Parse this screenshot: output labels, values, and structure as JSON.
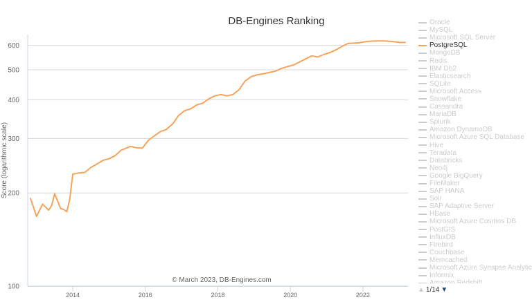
{
  "chart_data": {
    "type": "line",
    "title": "DB-Engines Ranking",
    "ylabel": "Score (logarithmic scale)",
    "y_scale": "log",
    "ylim": [
      100,
      650
    ],
    "y_ticks": [
      100,
      200,
      300,
      400,
      500,
      600
    ],
    "x_ticks": [
      "2014",
      "2016",
      "2018",
      "2020",
      "2022"
    ],
    "xlim": [
      "2012-11",
      "2023-03"
    ],
    "credits": "© March 2023, DB-Engines.com",
    "series_color": "#f7a35c",
    "series": [
      {
        "name": "PostgreSQL",
        "x": [
          "2012-11",
          "2013-01",
          "2013-03",
          "2013-05",
          "2013-06",
          "2013-07",
          "2013-09",
          "2013-10",
          "2013-11",
          "2013-12",
          "2014-01",
          "2014-03",
          "2014-05",
          "2014-07",
          "2014-09",
          "2014-11",
          "2015-01",
          "2015-03",
          "2015-05",
          "2015-07",
          "2015-08",
          "2015-10",
          "2015-12",
          "2016-02",
          "2016-04",
          "2016-06",
          "2016-08",
          "2016-10",
          "2016-12",
          "2017-02",
          "2017-04",
          "2017-06",
          "2017-08",
          "2017-10",
          "2017-12",
          "2018-02",
          "2018-04",
          "2018-06",
          "2018-08",
          "2018-10",
          "2018-12",
          "2019-02",
          "2019-04",
          "2019-06",
          "2019-08",
          "2019-10",
          "2019-12",
          "2020-02",
          "2020-04",
          "2020-06",
          "2020-08",
          "2020-10",
          "2020-12",
          "2021-02",
          "2021-04",
          "2021-06",
          "2021-08",
          "2021-10",
          "2021-12",
          "2022-02",
          "2022-04",
          "2022-06",
          "2022-08",
          "2022-10",
          "2022-12",
          "2023-01",
          "2023-03"
        ],
        "values": [
          192,
          168,
          184,
          176,
          182,
          199,
          178,
          177,
          174,
          191,
          230,
          232,
          233,
          242,
          248,
          255,
          258,
          264,
          275,
          280,
          283,
          280,
          279,
          296,
          306,
          316,
          321,
          334,
          356,
          369,
          374,
          385,
          390,
          403,
          412,
          416,
          412,
          416,
          431,
          460,
          475,
          482,
          485,
          490,
          495,
          505,
          512,
          518,
          530,
          542,
          555,
          550,
          560,
          568,
          580,
          595,
          608,
          610,
          612,
          617,
          619,
          620,
          620,
          618,
          615,
          613,
          613
        ]
      }
    ],
    "legend": {
      "items": [
        "Oracle",
        "MySQL",
        "Microsoft SQL Server",
        "PostgreSQL",
        "MongoDB",
        "Redis",
        "IBM Db2",
        "Elasticsearch",
        "SQLite",
        "Microsoft Access",
        "Snowflake",
        "Cassandra",
        "MariaDB",
        "Splunk",
        "Amazon DynamoDB",
        "Microsoft Azure SQL Database",
        "Hive",
        "Teradata",
        "Databricks",
        "Neo4j",
        "Google BigQuery",
        "FileMaker",
        "SAP HANA",
        "Solr",
        "SAP Adaptive Server",
        "HBase",
        "Microsoft Azure Cosmos DB",
        "PostGIS",
        "InfluxDB",
        "Firebird",
        "Couchbase",
        "Memcached",
        "Microsoft Azure Synapse Analytics",
        "Informix",
        "Amazon Redshift"
      ],
      "active": "PostgreSQL",
      "placement": "right",
      "page": "1/14"
    }
  }
}
